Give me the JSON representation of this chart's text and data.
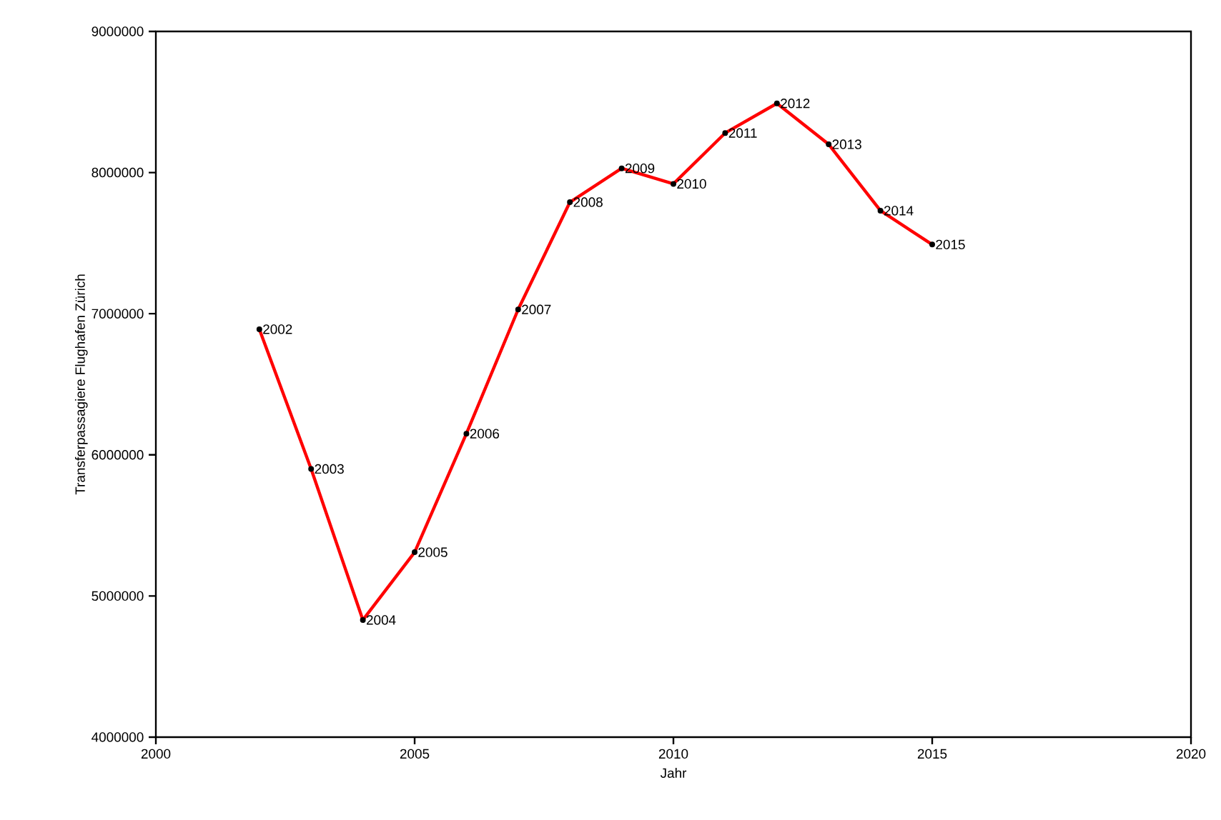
{
  "chart_data": {
    "type": "line",
    "xlabel": "Jahr",
    "ylabel": "Transferpassagiere Flughafen Zürich",
    "x": [
      2002,
      2003,
      2004,
      2005,
      2006,
      2007,
      2008,
      2009,
      2010,
      2011,
      2012,
      2013,
      2014,
      2015
    ],
    "series": [
      {
        "color": "#ff0000",
        "values": [
          6890000,
          5900000,
          4830000,
          5310000,
          6150000,
          7030000,
          7790000,
          8030000,
          7920000,
          8280000,
          8490000,
          8200000,
          7730000,
          7490000
        ]
      }
    ],
    "xlim": [
      2000,
      2020
    ],
    "xticks": [
      2000,
      2005,
      2010,
      2015,
      2020
    ],
    "ylim": [
      4000000,
      9000000
    ],
    "yticks": [
      4000000,
      5000000,
      6000000,
      7000000,
      8000000,
      9000000
    ],
    "marker": "circle",
    "line_style": "solid",
    "grid": false,
    "annotations": [
      {
        "text": "2002",
        "x": 2002,
        "y": 6890000
      },
      {
        "text": "2003",
        "x": 2003,
        "y": 5900000
      },
      {
        "text": "2004",
        "x": 2004,
        "y": 4830000
      },
      {
        "text": "2005",
        "x": 2005,
        "y": 5310000
      },
      {
        "text": "2006",
        "x": 2006,
        "y": 6150000
      },
      {
        "text": "2007",
        "x": 2007,
        "y": 7030000
      },
      {
        "text": "2008",
        "x": 2008,
        "y": 7790000
      },
      {
        "text": "2009",
        "x": 2009,
        "y": 8030000
      },
      {
        "text": "2010",
        "x": 2010,
        "y": 7920000
      },
      {
        "text": "2011",
        "x": 2011,
        "y": 8280000
      },
      {
        "text": "2012",
        "x": 2012,
        "y": 8490000
      },
      {
        "text": "2013",
        "x": 2013,
        "y": 8200000
      },
      {
        "text": "2014",
        "x": 2014,
        "y": 7730000
      },
      {
        "text": "2015",
        "x": 2015,
        "y": 7490000
      }
    ]
  }
}
